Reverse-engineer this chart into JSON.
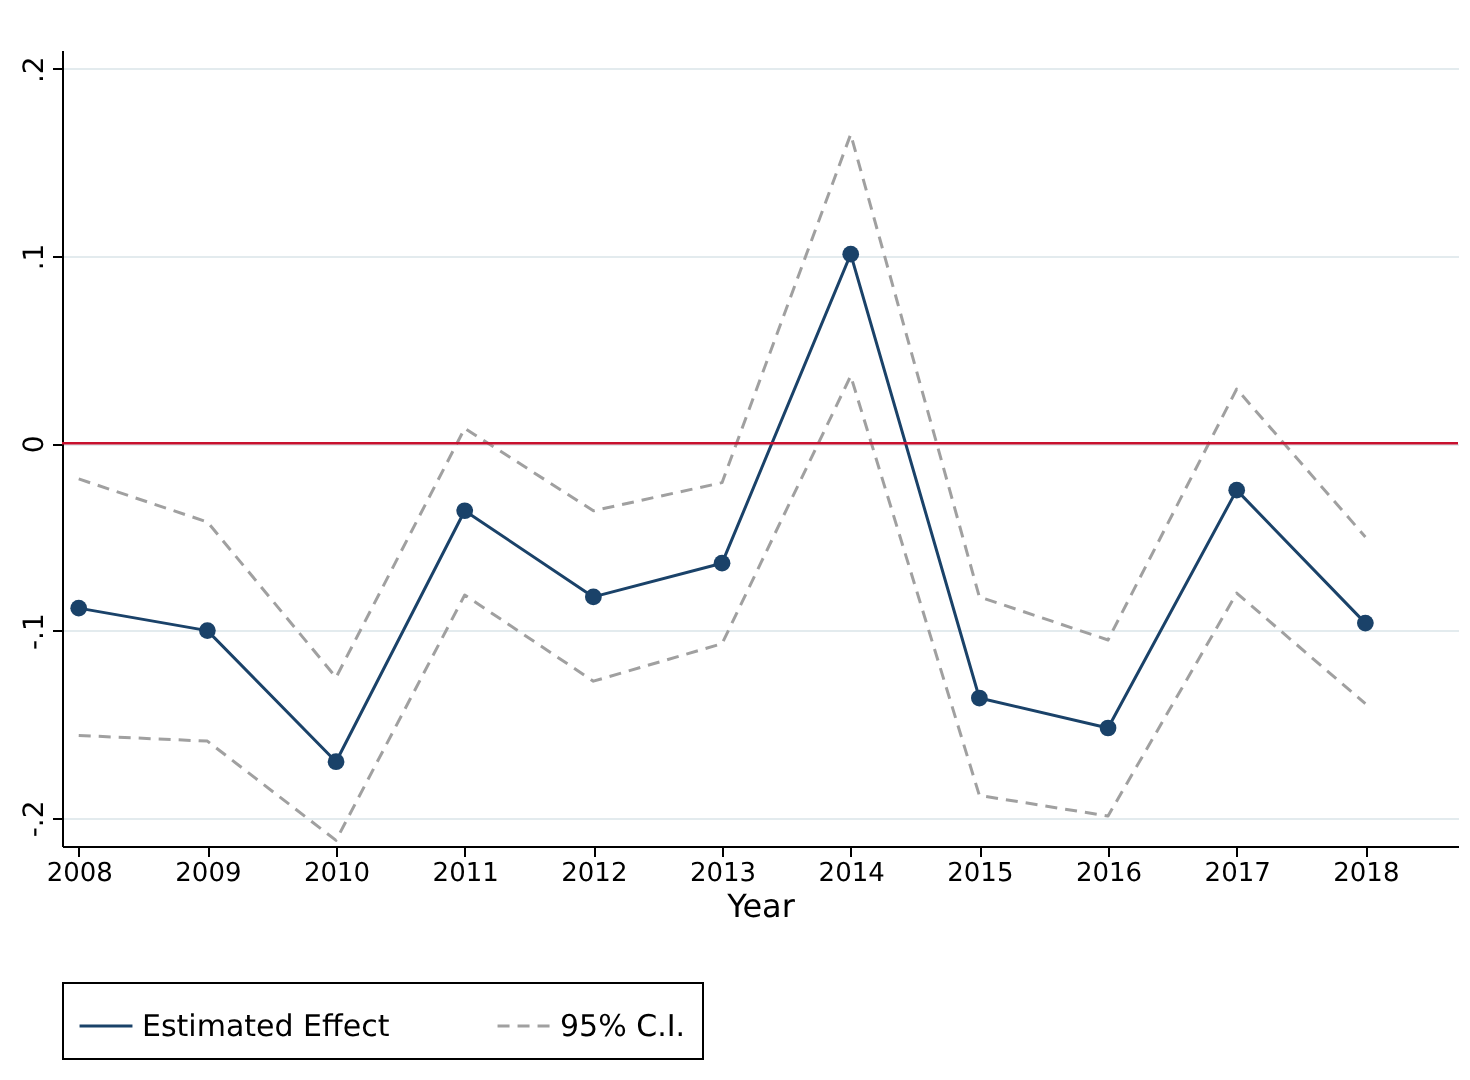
{
  "chart_data": {
    "type": "line",
    "xlabel": "Year",
    "x": [
      2008,
      2009,
      2010,
      2011,
      2012,
      2013,
      2014,
      2015,
      2016,
      2017,
      2018
    ],
    "series": [
      {
        "name": "Estimated Effect",
        "color": "#1a4269",
        "marker": "circle",
        "line_style": "solid",
        "values": [
          -0.088,
          -0.1,
          -0.17,
          -0.036,
          -0.082,
          -0.064,
          0.101,
          -0.136,
          -0.152,
          -0.025,
          -0.096
        ]
      },
      {
        "name": "95% C.I.",
        "color": "#a0a0a0",
        "marker": "none",
        "line_style": "dashed",
        "values": [
          -0.019,
          -0.042,
          -0.125,
          0.008,
          -0.036,
          -0.021,
          0.165,
          -0.082,
          -0.105,
          0.029,
          -0.05
        ]
      },
      {
        "color": "#a0a0a0",
        "marker": "none",
        "line_style": "dashed",
        "values": [
          -0.156,
          -0.159,
          -0.212,
          -0.081,
          -0.127,
          -0.107,
          0.036,
          -0.188,
          -0.199,
          -0.08,
          -0.139
        ]
      }
    ],
    "xlim": [
      2007.87,
      2018.72
    ],
    "xticks": [
      2008,
      2009,
      2010,
      2011,
      2012,
      2013,
      2014,
      2015,
      2016,
      2017,
      2018
    ],
    "ylim": [
      -0.215,
      0.21
    ],
    "yticks": [
      {
        "value": -0.2,
        "label": "-.2"
      },
      {
        "value": -0.1,
        "label": "-.1"
      },
      0,
      {
        "value": 0.1,
        "label": ".1"
      },
      {
        "value": 0.2,
        "label": ".2"
      }
    ],
    "grid": "y",
    "legend": "bottom",
    "ref_lines": [
      {
        "axis": "y",
        "value": 0,
        "color": "#c8102e"
      }
    ]
  }
}
